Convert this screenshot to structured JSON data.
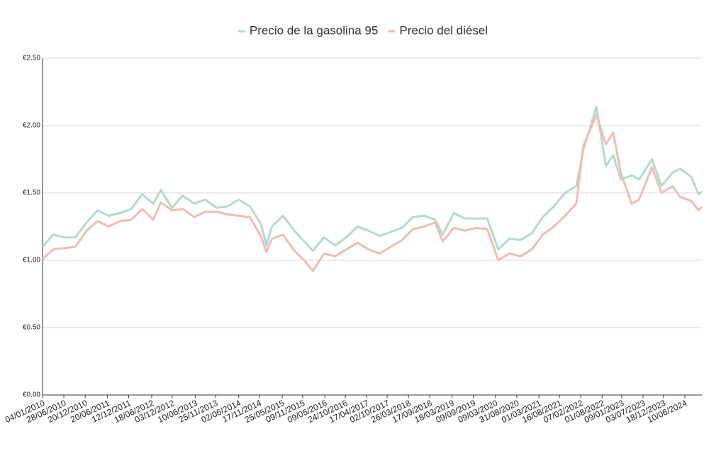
{
  "chart_data": {
    "type": "line",
    "x": [
      "04/01/2010",
      "01/04/2010",
      "01/07/2010",
      "01/10/2010",
      "01/01/2011",
      "01/04/2011",
      "01/07/2011",
      "01/10/2011",
      "01/01/2012",
      "01/04/2012",
      "01/07/2012",
      "01/09/2012",
      "01/12/2012",
      "01/03/2013",
      "01/06/2013",
      "01/09/2013",
      "01/12/2013",
      "01/03/2014",
      "01/06/2014",
      "01/09/2014",
      "01/12/2014",
      "15/01/2015",
      "01/03/2015",
      "01/06/2015",
      "01/09/2015",
      "01/12/2015",
      "01/02/2016",
      "01/05/2016",
      "01/08/2016",
      "01/11/2016",
      "01/02/2017",
      "01/05/2017",
      "01/08/2017",
      "01/11/2017",
      "01/02/2018",
      "01/05/2018",
      "01/08/2018",
      "01/11/2018",
      "01/01/2019",
      "01/04/2019",
      "01/07/2019",
      "01/10/2019",
      "01/01/2020",
      "01/04/2020",
      "01/07/2020",
      "01/10/2020",
      "01/01/2021",
      "01/04/2021",
      "01/07/2021",
      "01/10/2021",
      "01/01/2022",
      "01/03/2022",
      "15/06/2022",
      "01/09/2022",
      "01/11/2022",
      "01/01/2023",
      "01/04/2023",
      "01/06/2023",
      "15/09/2023",
      "01/12/2023",
      "01/03/2024",
      "01/05/2024",
      "01/08/2024",
      "01/10/2024",
      "28/10/2024"
    ],
    "series": [
      {
        "name": "Precio de la gasolina 95",
        "color": "#afdec7",
        "values": [
          1.1,
          1.19,
          1.17,
          1.17,
          1.28,
          1.37,
          1.33,
          1.35,
          1.38,
          1.49,
          1.42,
          1.52,
          1.39,
          1.48,
          1.42,
          1.45,
          1.39,
          1.4,
          1.45,
          1.4,
          1.27,
          1.11,
          1.25,
          1.33,
          1.22,
          1.13,
          1.07,
          1.17,
          1.11,
          1.17,
          1.25,
          1.22,
          1.18,
          1.21,
          1.24,
          1.32,
          1.33,
          1.3,
          1.19,
          1.35,
          1.31,
          1.31,
          1.31,
          1.08,
          1.16,
          1.15,
          1.2,
          1.32,
          1.4,
          1.5,
          1.55,
          1.82,
          2.14,
          1.7,
          1.78,
          1.6,
          1.63,
          1.6,
          1.75,
          1.55,
          1.65,
          1.68,
          1.62,
          1.49,
          1.51
        ]
      },
      {
        "name": "Precio del diésel",
        "color": "#f5bab1",
        "values": [
          1.01,
          1.08,
          1.09,
          1.1,
          1.22,
          1.29,
          1.25,
          1.29,
          1.3,
          1.38,
          1.3,
          1.43,
          1.37,
          1.38,
          1.32,
          1.36,
          1.36,
          1.34,
          1.33,
          1.32,
          1.18,
          1.06,
          1.16,
          1.19,
          1.07,
          0.99,
          0.92,
          1.05,
          1.03,
          1.08,
          1.13,
          1.08,
          1.05,
          1.1,
          1.15,
          1.23,
          1.25,
          1.28,
          1.14,
          1.24,
          1.22,
          1.24,
          1.23,
          1.0,
          1.05,
          1.03,
          1.08,
          1.19,
          1.25,
          1.33,
          1.42,
          1.85,
          2.08,
          1.86,
          1.95,
          1.65,
          1.42,
          1.45,
          1.69,
          1.5,
          1.55,
          1.47,
          1.44,
          1.37,
          1.4
        ]
      }
    ],
    "xlim": [
      "04/01/2010",
      "28/10/2024"
    ],
    "xticks": [
      "04/01/2010",
      "28/06/2010",
      "20/12/2010",
      "20/06/2011",
      "12/12/2011",
      "18/06/2012",
      "03/12/2012",
      "10/06/2013",
      "25/11/2013",
      "02/06/2014",
      "17/11/2014",
      "25/05/2015",
      "09/11/2015",
      "09/05/2016",
      "24/10/2016",
      "17/04/2017",
      "02/10/2017",
      "26/03/2018",
      "17/09/2018",
      "18/03/2019",
      "09/09/2019",
      "09/03/2020",
      "31/08/2020",
      "01/03/2021",
      "16/08/2021",
      "07/02/2022",
      "01/08/2022",
      "09/01/2023",
      "03/07/2023",
      "18/12/2023",
      "10/06/2024"
    ],
    "ylim": [
      0,
      2.5
    ],
    "yticks": [
      {
        "value": 0,
        "label": "€0.00"
      },
      {
        "value": 0.5,
        "label": "€0.50"
      },
      {
        "value": 1,
        "label": "€1.00"
      },
      {
        "value": 1.5,
        "label": "€1.50"
      },
      {
        "value": 2,
        "label": "€2.00"
      },
      {
        "value": 2.5,
        "label": "€2.50"
      }
    ],
    "grid": true,
    "legend": "top"
  }
}
